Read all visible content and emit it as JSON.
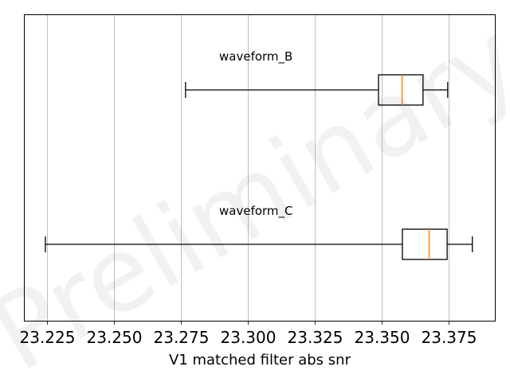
{
  "chart_data": {
    "type": "boxplot",
    "orientation": "horizontal",
    "xlabel": "V1 matched filter abs snr",
    "xlim": [
      23.2165,
      23.3925
    ],
    "xticks": [
      23.225,
      23.25,
      23.275,
      23.3,
      23.325,
      23.35,
      23.375
    ],
    "xtick_labels": [
      "23.225",
      "23.250",
      "23.275",
      "23.300",
      "23.325",
      "23.350",
      "23.375"
    ],
    "grid": "vertical",
    "watermark": "Preliminary",
    "colors": {
      "box": "#000000",
      "median": "#ff7f0e",
      "grid": "#b0b0b0"
    },
    "series": [
      {
        "name": "waveform_B",
        "whisker_low": 23.2768,
        "q1": 23.3488,
        "median": 23.3576,
        "q3": 23.3654,
        "whisker_high": 23.3746
      },
      {
        "name": "waveform_C",
        "whisker_low": 23.2245,
        "q1": 23.3577,
        "median": 23.3677,
        "q3": 23.3744,
        "whisker_high": 23.3838
      }
    ]
  }
}
